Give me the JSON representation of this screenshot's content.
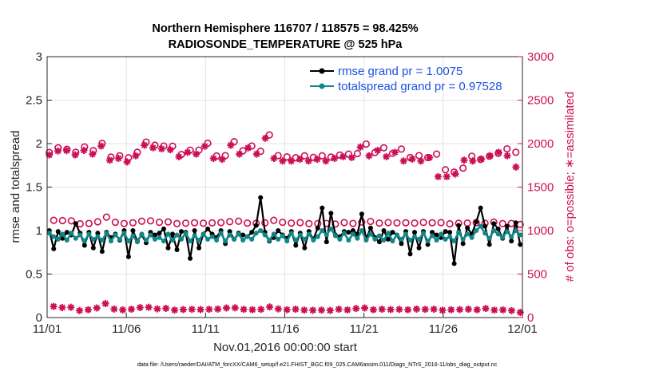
{
  "colors": {
    "rmse": "#000000",
    "totalspread": "#128686",
    "obs_count": "#cc0e55",
    "legend_text": "#1a52e0",
    "grid": "#e3e3e3"
  },
  "chart_data": {
    "type": "line",
    "title": [
      "Northern Hemisphere 116707 / 118575 = 98.425%",
      "RADIOSONDE_TEMPERATURE @ 525 hPa"
    ],
    "xlabel": "Nov.01,2016 00:00:00 start",
    "ylabel_left": "rmse and totalspread",
    "ylabel_right": "# of obs: o=possible; ∗=assimilated",
    "x_ticks": [
      "11/01",
      "11/06",
      "11/11",
      "11/16",
      "11/21",
      "11/26",
      "12/01"
    ],
    "x_range_days": [
      0,
      30
    ],
    "ylim_left": [
      0,
      3
    ],
    "y_ticks_left": [
      "0",
      "0.5",
      "1",
      "1.5",
      "2",
      "2.5",
      "3"
    ],
    "ylim_right": [
      0,
      3000
    ],
    "y_ticks_right": [
      "0",
      "500",
      "1000",
      "1500",
      "2000",
      "2500",
      "3000"
    ],
    "grid": true,
    "legend_position": "top-right",
    "footnote": "data file: /Users/raeder/DAI/ATM_forcXX/CAM6_setup/f.e21.FHIST_BGC.f09_025.CAM6assim.011/Diags_NTrS_2016-11/obs_diag_output.nc",
    "series": [
      {
        "name": "rmse grand pr = 1.0075",
        "axis": "left",
        "marker": "filled-circle",
        "values": [
          1.0,
          0.79,
          0.99,
          0.91,
          0.98,
          0.95,
          1.08,
          0.97,
          0.83,
          0.98,
          0.8,
          0.97,
          0.76,
          0.98,
          0.92,
          0.96,
          0.89,
          1.0,
          0.7,
          1.0,
          0.88,
          0.95,
          0.86,
          0.98,
          0.95,
          0.97,
          1.02,
          0.8,
          0.96,
          0.78,
          0.99,
          0.98,
          0.68,
          1.0,
          0.8,
          0.96,
          1.02,
          0.96,
          0.92,
          1.0,
          0.85,
          0.99,
          0.9,
          0.97,
          0.95,
          0.93,
          0.98,
          1.06,
          1.38,
          0.98,
          0.88,
          0.92,
          1.0,
          0.95,
          0.91,
          0.99,
          0.83,
          0.97,
          0.8,
          0.99,
          0.9,
          1.03,
          1.26,
          0.87,
          1.2,
          0.95,
          0.93,
          0.99,
          0.98,
          1.0,
          0.96,
          1.19,
          0.9,
          1.03,
          0.92,
          0.87,
          1.0,
          0.9,
          0.98,
          0.95,
          0.85,
          0.99,
          0.73,
          0.98,
          0.8,
          0.99,
          0.84,
          0.98,
          0.95,
          0.92,
          0.99,
          0.98,
          0.62,
          1.06,
          0.85,
          1.03,
          0.96,
          1.1,
          1.26,
          1.05,
          0.84,
          1.08,
          1.02,
          0.91,
          1.05,
          0.88,
          1.09,
          0.84
        ]
      },
      {
        "name": "totalspread grand pr = 0.97528",
        "axis": "left",
        "marker": "filled-circle",
        "values": [
          0.97,
          0.93,
          0.9,
          0.96,
          0.89,
          0.97,
          0.91,
          0.95,
          0.88,
          0.96,
          0.9,
          0.93,
          0.89,
          0.97,
          0.88,
          0.95,
          0.9,
          0.97,
          0.88,
          0.94,
          0.87,
          0.96,
          0.89,
          0.95,
          0.9,
          0.92,
          0.88,
          0.96,
          0.89,
          0.95,
          0.9,
          0.97,
          0.88,
          0.94,
          0.89,
          0.96,
          0.9,
          0.93,
          0.89,
          0.97,
          0.88,
          0.95,
          0.9,
          0.96,
          0.89,
          0.93,
          0.9,
          0.97,
          1.0,
          0.95,
          0.89,
          0.96,
          0.9,
          0.94,
          0.88,
          0.97,
          0.89,
          0.95,
          0.9,
          0.96,
          0.89,
          0.93,
          1.0,
          0.95,
          1.02,
          0.94,
          0.9,
          0.97,
          0.89,
          0.96,
          0.91,
          1.0,
          0.89,
          0.96,
          0.9,
          0.94,
          0.89,
          0.97,
          0.88,
          0.95,
          0.9,
          0.96,
          0.89,
          0.93,
          0.9,
          0.97,
          0.88,
          0.94,
          0.89,
          0.96,
          0.9,
          0.93,
          0.88,
          0.98,
          0.9,
          0.96,
          0.92,
          1.0,
          1.05,
          0.97,
          0.91,
          1.0,
          0.96,
          0.92,
          0.99,
          0.93,
          1.0,
          0.95
        ]
      },
      {
        "name": "possible",
        "axis": "right",
        "marker": "open-circle",
        "values": [
          1898,
          1118,
          1952,
          1115,
          1935,
          1112,
          1900,
          1078,
          1962,
          1082,
          1920,
          1101,
          2002,
          1155,
          1845,
          1095,
          1860,
          1081,
          1838,
          1090,
          1900,
          1108,
          2018,
          1112,
          1982,
          1095,
          1972,
          1100,
          1970,
          1080,
          1875,
          1085,
          1925,
          1090,
          1925,
          1085,
          2005,
          1088,
          1858,
          1092,
          1862,
          1102,
          2022,
          1108,
          1918,
          1086,
          1973,
          1084,
          1912,
          1088,
          2100,
          1118,
          1862,
          1095,
          1848,
          1086,
          1838,
          1092,
          1860,
          1080,
          1842,
          1080,
          1860,
          1082,
          1845,
          1075,
          1868,
          1092,
          1880,
          1082,
          1885,
          1098,
          1995,
          1105,
          1898,
          1086,
          1952,
          1092,
          1888,
          1088,
          1937,
          1090,
          1840,
          1086,
          1862,
          1094,
          1840,
          1090,
          1880,
          1092,
          1700,
          1078,
          1672,
          1084,
          1718,
          1086,
          1855,
          1092,
          1818,
          1084,
          1855,
          1098,
          1888,
          1080,
          1940,
          1082,
          1900,
          1070
        ]
      },
      {
        "name": "assimilated",
        "axis": "right",
        "marker": "asterisk",
        "values": [
          1870,
          128,
          1915,
          115,
          1920,
          118,
          1870,
          80,
          1922,
          90,
          1880,
          110,
          1972,
          160,
          1810,
          98,
          1830,
          88,
          1790,
          96,
          1860,
          115,
          1982,
          118,
          1952,
          100,
          1940,
          106,
          1930,
          86,
          1850,
          92,
          1900,
          95,
          1880,
          92,
          1970,
          95,
          1830,
          98,
          1820,
          110,
          1982,
          112,
          1880,
          94,
          1950,
          90,
          1880,
          94,
          2062,
          122,
          1830,
          100,
          1800,
          90,
          1800,
          96,
          1820,
          86,
          1800,
          84,
          1820,
          86,
          1800,
          82,
          1830,
          96,
          1850,
          88,
          1840,
          104,
          1960,
          110,
          1860,
          90,
          1922,
          96,
          1850,
          92,
          1900,
          94,
          1800,
          90,
          1822,
          98,
          1800,
          94,
          1840,
          96,
          1620,
          84,
          1620,
          90,
          1650,
          92,
          1810,
          96,
          1800,
          90,
          1822,
          104,
          1860,
          86,
          1900,
          88,
          1860,
          80,
          1730,
          60
        ]
      }
    ]
  }
}
